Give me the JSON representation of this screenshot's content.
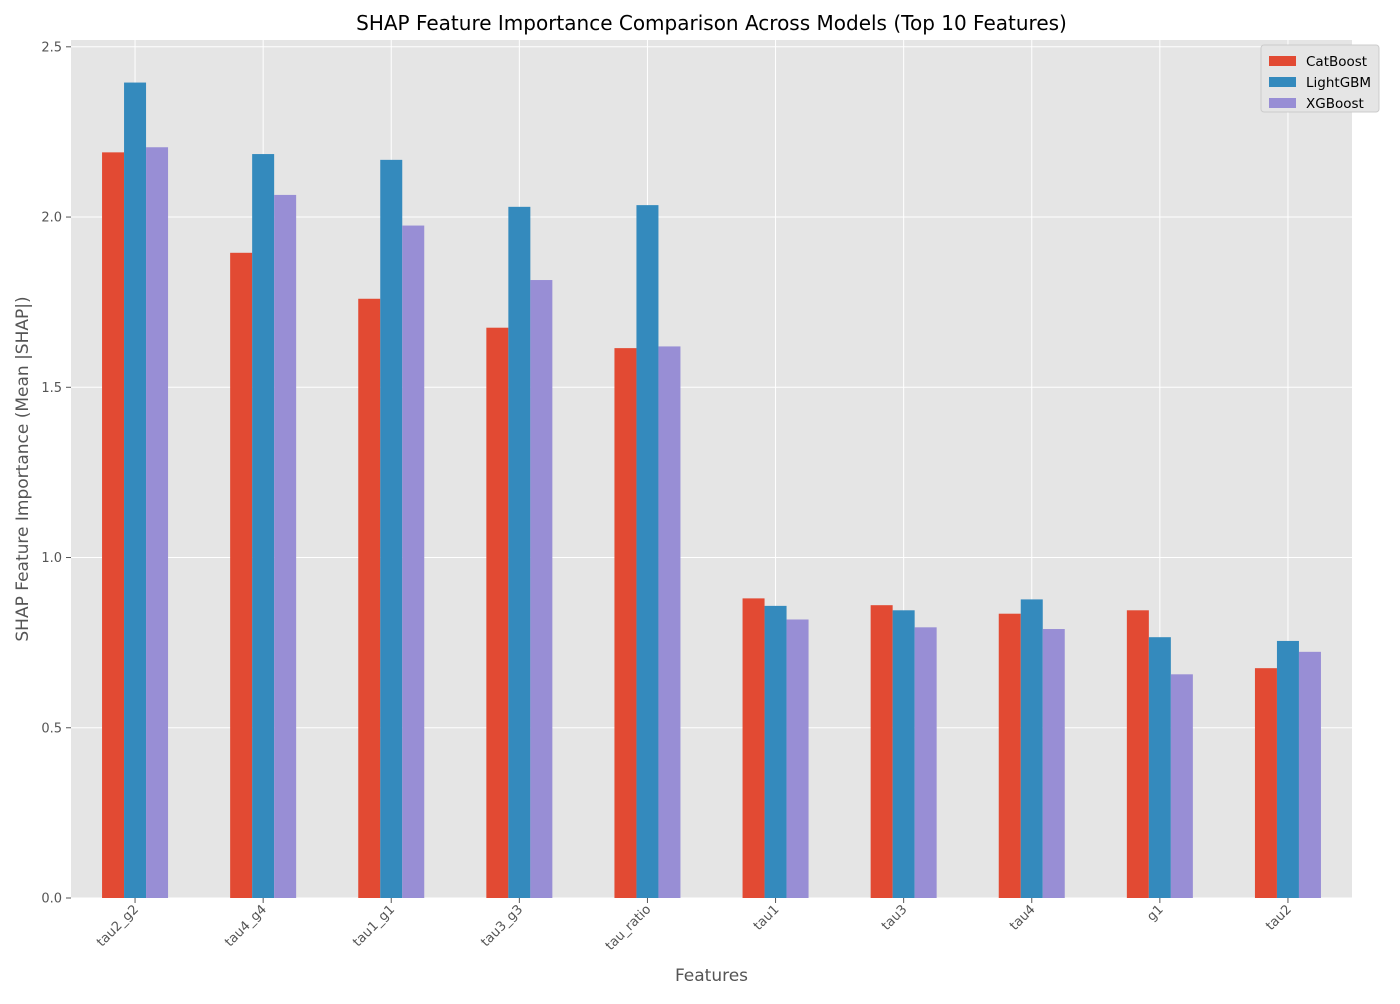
{
  "chart_data": {
    "type": "bar",
    "title": "SHAP Feature Importance Comparison Across Models (Top 10 Features)",
    "xlabel": "Features",
    "ylabel": "SHAP Feature Importance (Mean |SHAP|)",
    "ylim": [
      0,
      2.52
    ],
    "yticks": [
      "0.0",
      "0.5",
      "1.0",
      "1.5",
      "2.0",
      "2.5"
    ],
    "grid": true,
    "legend_position": "top-right",
    "categories": [
      "tau2_g2",
      "tau4_g4",
      "tau1_g1",
      "tau3_g3",
      "tau_ratio",
      "tau1",
      "tau3",
      "tau4",
      "g1",
      "tau2"
    ],
    "series": [
      {
        "name": "CatBoost",
        "color": "#e24a33",
        "values": [
          2.19,
          1.895,
          1.76,
          1.675,
          1.615,
          0.88,
          0.86,
          0.835,
          0.845,
          0.675
        ]
      },
      {
        "name": "LightGBM",
        "color": "#348abd",
        "values": [
          2.395,
          2.185,
          2.168,
          2.03,
          2.035,
          0.858,
          0.845,
          0.877,
          0.766,
          0.755
        ]
      },
      {
        "name": "XGBoost",
        "color": "#988ed5",
        "values": [
          2.205,
          2.065,
          1.975,
          1.815,
          1.62,
          0.818,
          0.795,
          0.79,
          0.657,
          0.723
        ]
      }
    ]
  }
}
